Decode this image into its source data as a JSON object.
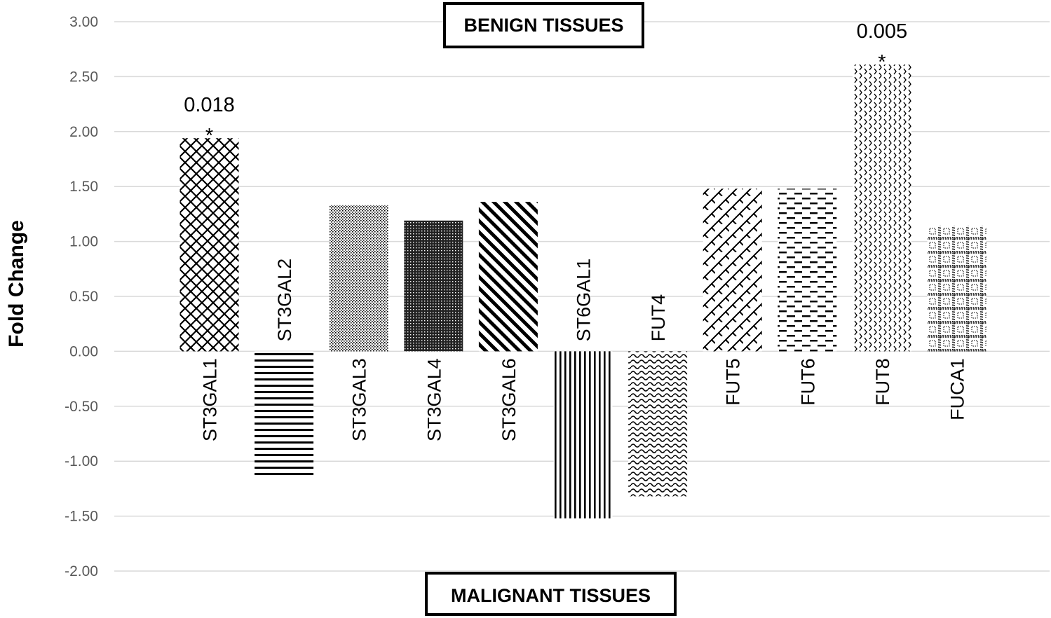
{
  "chart_data": {
    "type": "bar",
    "ylabel": "Fold Change",
    "ylim": [
      -2.0,
      3.0
    ],
    "yticks": [
      "3.00",
      "2.50",
      "2.00",
      "1.50",
      "1.00",
      "0.50",
      "0.00",
      "-0.50",
      "-1.00",
      "-1.50",
      "-2.00"
    ],
    "grid": true,
    "categories": [
      "ST3GAL1",
      "ST3GAL2",
      "ST3GAL3",
      "ST3GAL4",
      "ST3GAL6",
      "ST6GAL1",
      "FUT4",
      "FUT5",
      "FUT6",
      "FUT8",
      "FUCA1"
    ],
    "values": [
      1.94,
      -1.15,
      1.33,
      1.19,
      1.36,
      -1.52,
      -1.32,
      1.48,
      1.48,
      2.61,
      1.14
    ],
    "patterns": [
      "crosshatch",
      "horizontal-lines",
      "fine-dots",
      "dense-dots",
      "diagonal-stripes",
      "vertical-lines",
      "wave",
      "diagonal-brick",
      "dashes",
      "zigzag",
      "grid-squares"
    ],
    "annotations": [
      {
        "category": "ST3GAL1",
        "pvalue": "0.018",
        "marker": "*"
      },
      {
        "category": "FUT8",
        "pvalue": "0.005",
        "marker": "*"
      }
    ],
    "top_box_label": "BENIGN TISSUES",
    "bottom_box_label": "MALIGNANT TISSUES"
  }
}
